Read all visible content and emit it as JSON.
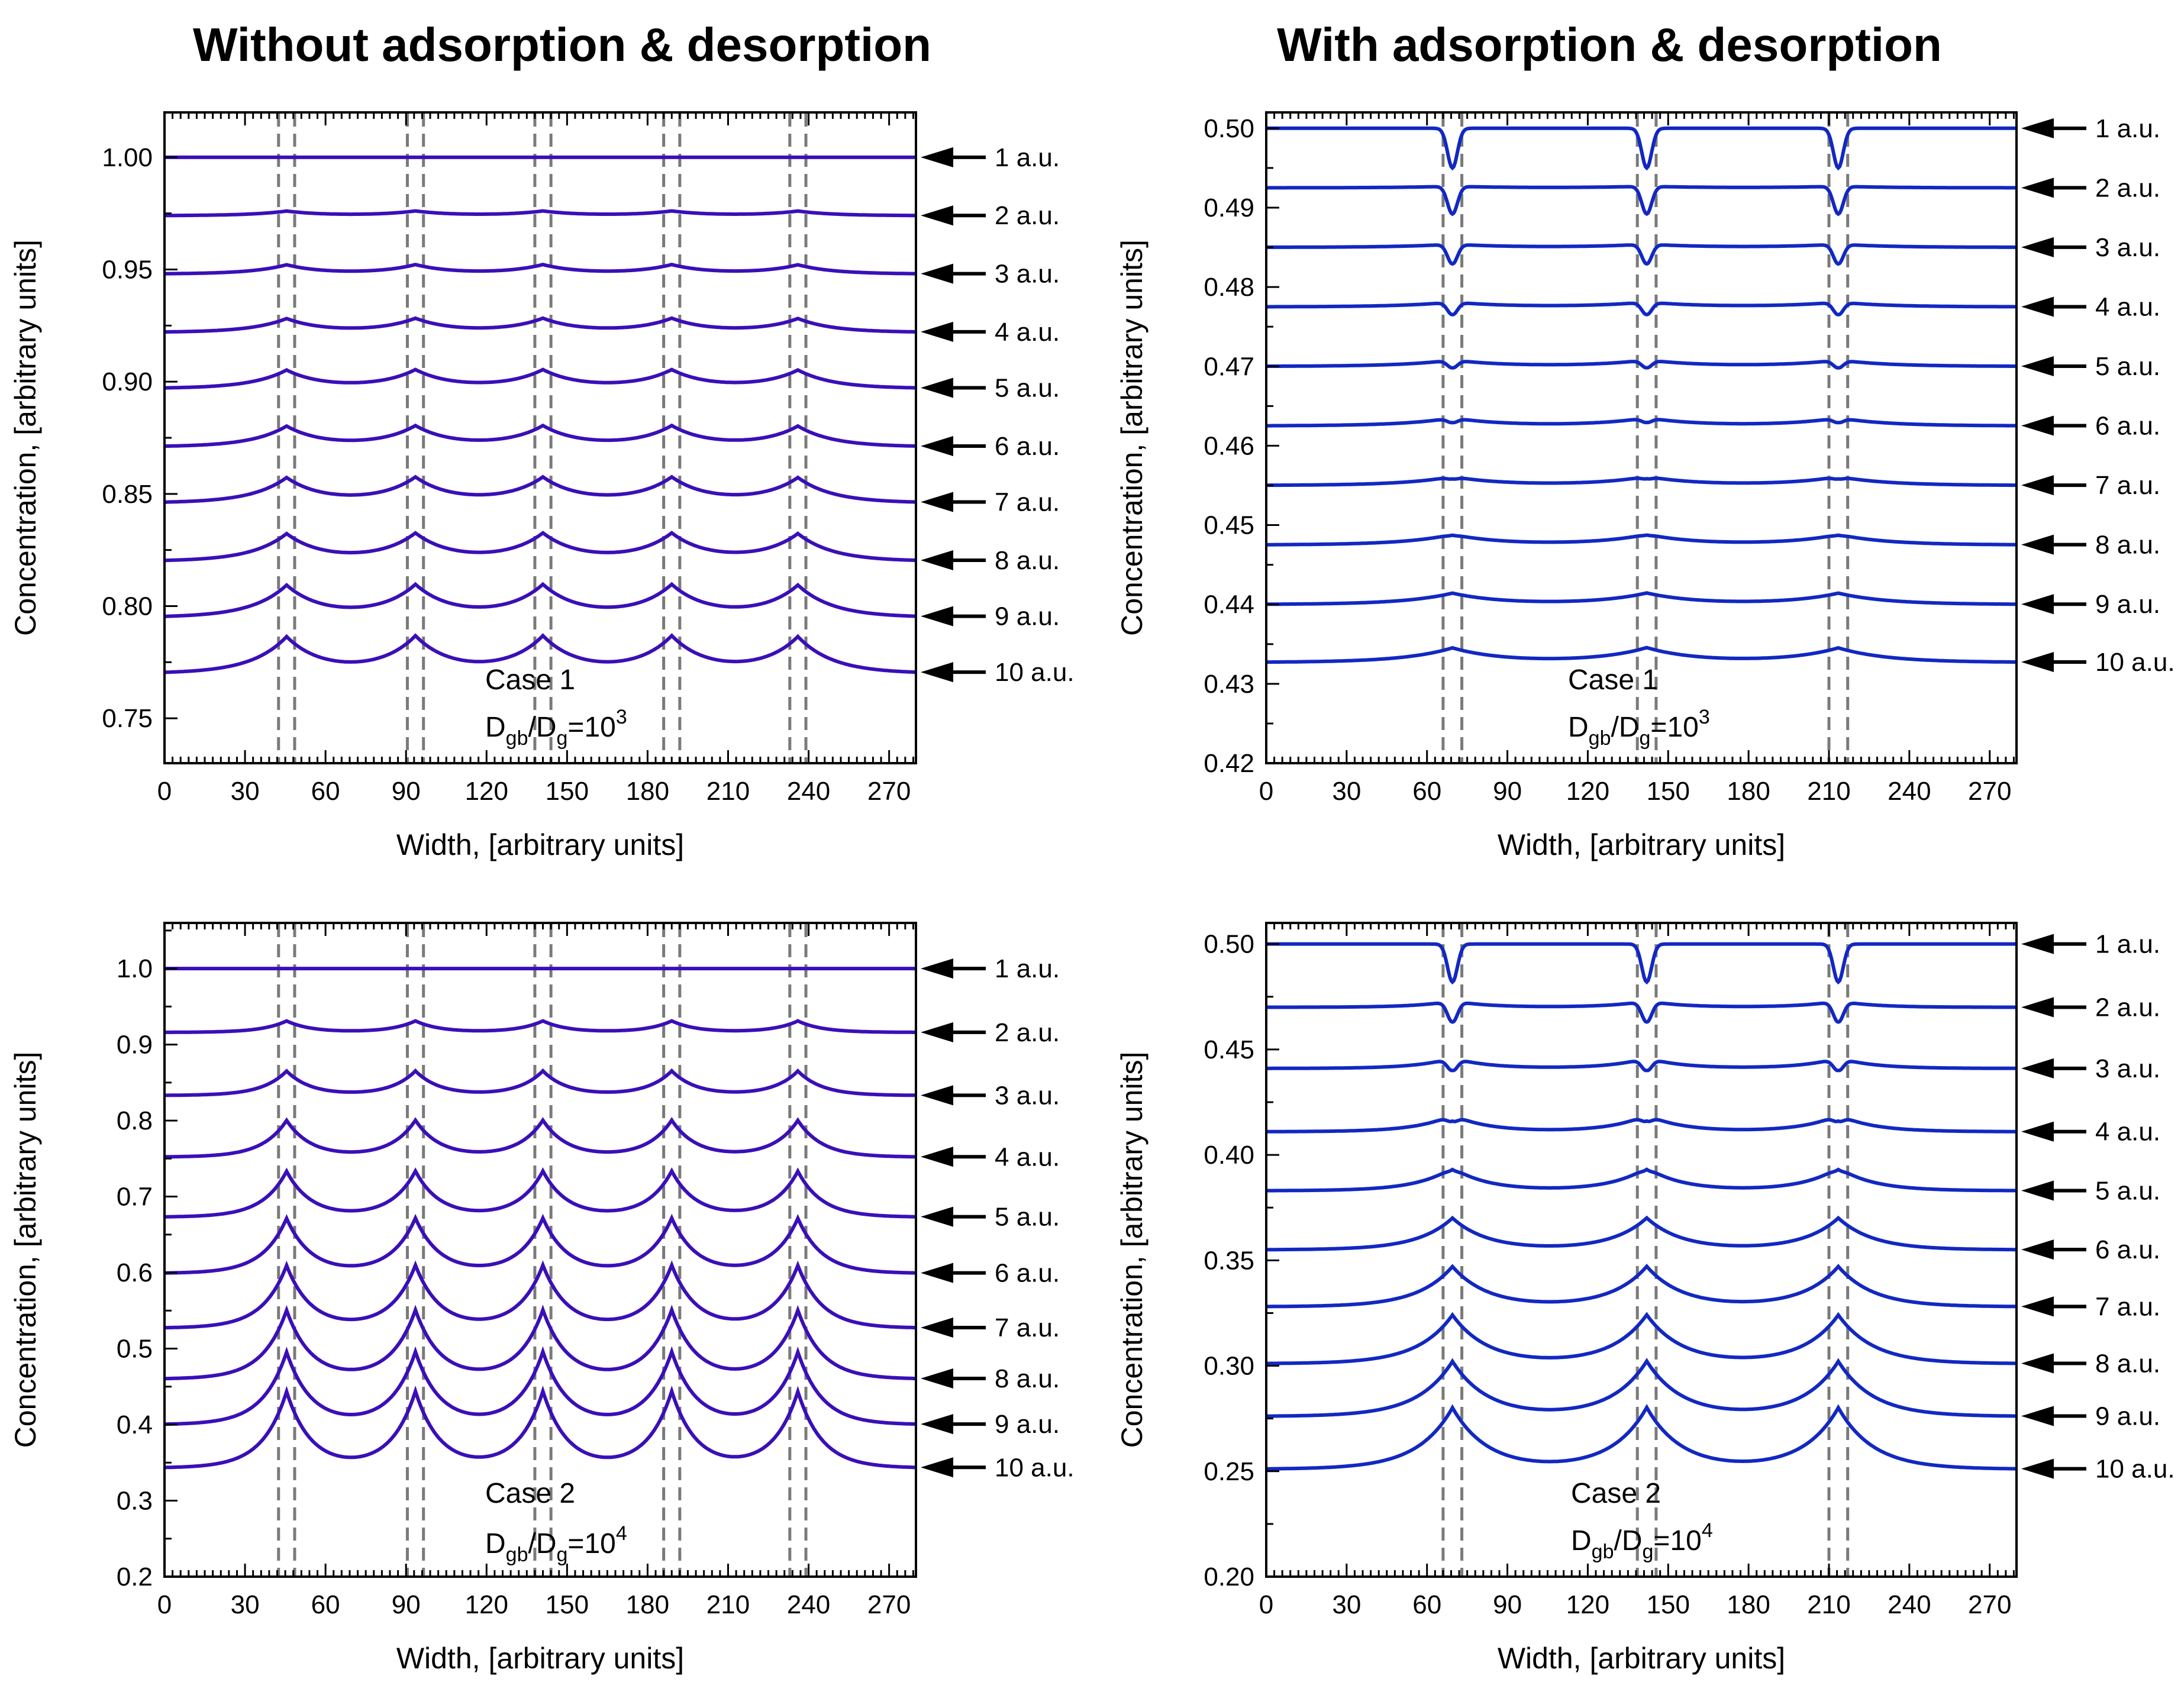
{
  "titles": {
    "left": "Without adsorption & desorption",
    "right": "With adsorption & desorption"
  },
  "colors": {
    "left_curves": "#3a0fb8",
    "right_curves": "#1228c2",
    "gb_lines": "#7a7a7a",
    "arrows": "#000000"
  },
  "chart_data": [
    {
      "id": "tl",
      "type": "line",
      "column": "Without adsorption & desorption",
      "xlabel": "Width, [arbitrary units]",
      "ylabel": "Concentration, [arbitrary units]",
      "xlim": [
        0,
        280
      ],
      "ylim": [
        0.73,
        1.02
      ],
      "xticks": [
        0,
        30,
        60,
        90,
        120,
        150,
        180,
        210,
        240,
        270
      ],
      "yticks": [
        0.75,
        0.8,
        0.85,
        0.9,
        0.95,
        1.0
      ],
      "ytick_labels": [
        "0.75",
        "0.80",
        "0.85",
        "0.90",
        "0.95",
        "1.00"
      ],
      "gb_centers": [
        45.5,
        93.5,
        141,
        189,
        236
      ],
      "gb_half_width": 3,
      "peak_kind": "bump",
      "peak_width": 13,
      "case_label": "Case 1",
      "ratio_base": "D",
      "ratio_sub1": "gb",
      "ratio_mid": "/D",
      "ratio_sub2": "g",
      "ratio_eq": "=10",
      "ratio_exp": "3",
      "series": [
        {
          "name": "1 a.u.",
          "baseline": 1.0,
          "amp": 0.0
        },
        {
          "name": "2 a.u.",
          "baseline": 0.974,
          "amp": 0.002
        },
        {
          "name": "3 a.u.",
          "baseline": 0.948,
          "amp": 0.004
        },
        {
          "name": "4 a.u.",
          "baseline": 0.922,
          "amp": 0.006
        },
        {
          "name": "5 a.u.",
          "baseline": 0.897,
          "amp": 0.008
        },
        {
          "name": "6 a.u.",
          "baseline": 0.871,
          "amp": 0.009
        },
        {
          "name": "7 a.u.",
          "baseline": 0.846,
          "amp": 0.011
        },
        {
          "name": "8 a.u.",
          "baseline": 0.82,
          "amp": 0.012
        },
        {
          "name": "9 a.u.",
          "baseline": 0.795,
          "amp": 0.014
        },
        {
          "name": "10 a.u.",
          "baseline": 0.77,
          "amp": 0.016
        }
      ]
    },
    {
      "id": "tr",
      "type": "line",
      "column": "With adsorption & desorption",
      "xlabel": "Width, [arbitrary units]",
      "ylabel": "Concentration, [arbitrary units]",
      "xlim": [
        0,
        280
      ],
      "ylim": [
        0.42,
        0.502
      ],
      "xticks": [
        0,
        30,
        60,
        90,
        120,
        150,
        180,
        210,
        240,
        270
      ],
      "yticks": [
        0.42,
        0.43,
        0.44,
        0.45,
        0.46,
        0.47,
        0.48,
        0.49,
        0.5
      ],
      "ytick_labels": [
        "0.42",
        "0.43",
        "0.44",
        "0.45",
        "0.46",
        "0.47",
        "0.48",
        "0.49",
        "0.50"
      ],
      "gb_centers": [
        69.5,
        142,
        213.5
      ],
      "gb_half_width": 3.5,
      "peak_kind": "dip",
      "peak_width": 18,
      "case_label": "Case 1",
      "ratio_base": "D",
      "ratio_sub1": "gb",
      "ratio_mid": "/D",
      "ratio_sub2": "g",
      "ratio_eq": "=10",
      "ratio_exp": "3",
      "series": [
        {
          "name": "1 a.u.",
          "baseline": 0.5,
          "dip": 0.005,
          "hump": 0.0
        },
        {
          "name": "2 a.u.",
          "baseline": 0.4925,
          "dip": 0.0035,
          "hump": 0.0002
        },
        {
          "name": "3 a.u.",
          "baseline": 0.485,
          "dip": 0.0025,
          "hump": 0.0004
        },
        {
          "name": "4 a.u.",
          "baseline": 0.4775,
          "dip": 0.0016,
          "hump": 0.0006
        },
        {
          "name": "5 a.u.",
          "baseline": 0.47,
          "dip": 0.001,
          "hump": 0.0008
        },
        {
          "name": "6 a.u.",
          "baseline": 0.4625,
          "dip": 0.0006,
          "hump": 0.001
        },
        {
          "name": "7 a.u.",
          "baseline": 0.455,
          "dip": 0.0003,
          "hump": 0.0011
        },
        {
          "name": "8 a.u.",
          "baseline": 0.4475,
          "dip": 0.0001,
          "hump": 0.0013
        },
        {
          "name": "9 a.u.",
          "baseline": 0.44,
          "dip": 0.0,
          "hump": 0.0014
        },
        {
          "name": "10 a.u.",
          "baseline": 0.4327,
          "dip": 0.0,
          "hump": 0.0018
        }
      ]
    },
    {
      "id": "bl",
      "type": "line",
      "column": "Without adsorption & desorption",
      "xlabel": "Width, [arbitrary units]",
      "ylabel": "Concentration, [arbitrary units]",
      "xlim": [
        0,
        280
      ],
      "ylim": [
        0.2,
        1.06
      ],
      "xticks": [
        0,
        30,
        60,
        90,
        120,
        150,
        180,
        210,
        240,
        270
      ],
      "yticks": [
        0.2,
        0.3,
        0.4,
        0.5,
        0.6,
        0.7,
        0.8,
        0.9,
        1.0
      ],
      "ytick_labels": [
        "0.2",
        "0.3",
        "0.4",
        "0.5",
        "0.6",
        "0.7",
        "0.8",
        "0.9",
        "1.0"
      ],
      "gb_centers": [
        45.5,
        93.5,
        141,
        189,
        236
      ],
      "gb_half_width": 3,
      "peak_kind": "bump",
      "peak_width": 9,
      "case_label": "Case 2",
      "ratio_base": "D",
      "ratio_sub1": "gb",
      "ratio_mid": "/D",
      "ratio_sub2": "g",
      "ratio_eq": "=10",
      "ratio_exp": "4",
      "series": [
        {
          "name": "1 a.u.",
          "baseline": 1.0,
          "amp": 0.0
        },
        {
          "name": "2 a.u.",
          "baseline": 0.916,
          "amp": 0.015
        },
        {
          "name": "3 a.u.",
          "baseline": 0.833,
          "amp": 0.032
        },
        {
          "name": "4 a.u.",
          "baseline": 0.752,
          "amp": 0.048
        },
        {
          "name": "5 a.u.",
          "baseline": 0.673,
          "amp": 0.06
        },
        {
          "name": "6 a.u.",
          "baseline": 0.599,
          "amp": 0.072
        },
        {
          "name": "7 a.u.",
          "baseline": 0.527,
          "amp": 0.082
        },
        {
          "name": "8 a.u.",
          "baseline": 0.46,
          "amp": 0.09
        },
        {
          "name": "9 a.u.",
          "baseline": 0.4,
          "amp": 0.095
        },
        {
          "name": "10 a.u.",
          "baseline": 0.343,
          "amp": 0.1
        }
      ]
    },
    {
      "id": "br",
      "type": "line",
      "column": "With adsorption & desorption",
      "xlabel": "Width, [arbitrary units]",
      "ylabel": "Concentration, [arbitrary units]",
      "xlim": [
        0,
        280
      ],
      "ylim": [
        0.2,
        0.51
      ],
      "xticks": [
        0,
        30,
        60,
        90,
        120,
        150,
        180,
        210,
        240,
        270
      ],
      "yticks": [
        0.2,
        0.25,
        0.3,
        0.35,
        0.4,
        0.45,
        0.5
      ],
      "ytick_labels": [
        "0.20",
        "0.25",
        "0.30",
        "0.35",
        "0.40",
        "0.45",
        "0.50"
      ],
      "gb_centers": [
        69.5,
        142,
        213.5
      ],
      "gb_half_width": 3.5,
      "peak_kind": "dip",
      "peak_width": 13,
      "case_label": "Case 2",
      "ratio_base": "D",
      "ratio_sub1": "gb",
      "ratio_mid": "/D",
      "ratio_sub2": "g",
      "ratio_eq": "=10",
      "ratio_exp": "4",
      "series": [
        {
          "name": "1 a.u.",
          "baseline": 0.5,
          "dip": 0.018,
          "hump": 0.0
        },
        {
          "name": "2 a.u.",
          "baseline": 0.47,
          "dip": 0.01,
          "hump": 0.003
        },
        {
          "name": "3 a.u.",
          "baseline": 0.441,
          "dip": 0.006,
          "hump": 0.005
        },
        {
          "name": "4 a.u.",
          "baseline": 0.411,
          "dip": 0.003,
          "hump": 0.008
        },
        {
          "name": "5 a.u.",
          "baseline": 0.383,
          "dip": 0.001,
          "hump": 0.011
        },
        {
          "name": "6 a.u.",
          "baseline": 0.355,
          "dip": 0.0,
          "hump": 0.015
        },
        {
          "name": "7 a.u.",
          "baseline": 0.328,
          "dip": 0.0,
          "hump": 0.019
        },
        {
          "name": "8 a.u.",
          "baseline": 0.301,
          "dip": 0.0,
          "hump": 0.023
        },
        {
          "name": "9 a.u.",
          "baseline": 0.276,
          "dip": 0.0,
          "hump": 0.026
        },
        {
          "name": "10 a.u.",
          "baseline": 0.251,
          "dip": 0.0,
          "hump": 0.029
        }
      ]
    }
  ]
}
